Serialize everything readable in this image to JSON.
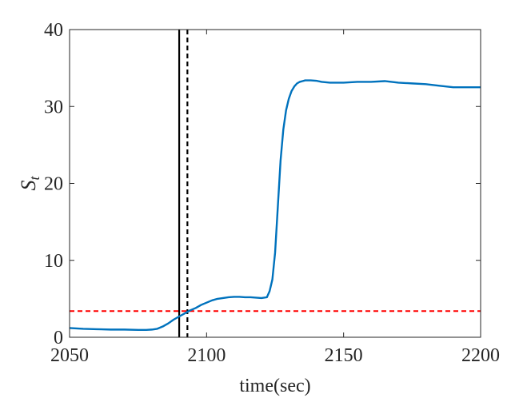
{
  "chart_data": {
    "type": "line",
    "title": "",
    "xlabel": "time(sec)",
    "ylabel": {
      "main": "S",
      "subscript": "t"
    },
    "xlim": [
      2050,
      2200
    ],
    "ylim": [
      0,
      40
    ],
    "xticks": [
      2050,
      2100,
      2150,
      2200
    ],
    "yticks": [
      0,
      10,
      20,
      30,
      40
    ],
    "xtick_labels": [
      "2050",
      "2100",
      "2150",
      "2200"
    ],
    "ytick_labels": [
      "0",
      "10",
      "20",
      "30",
      "40"
    ],
    "grid": false,
    "box": true,
    "series": [
      {
        "color": "#0072BD",
        "style": "solid",
        "x": [
          2050,
          2055,
          2060,
          2065,
          2070,
          2075,
          2078,
          2080,
          2082,
          2084,
          2086,
          2088,
          2090,
          2092,
          2094,
          2096,
          2098,
          2100,
          2102,
          2104,
          2106,
          2108,
          2110,
          2112,
          2114,
          2116,
          2118,
          2120,
          2122,
          2123,
          2124,
          2125,
          2126,
          2127,
          2128,
          2129,
          2130,
          2131,
          2132,
          2133,
          2134,
          2135,
          2136,
          2138,
          2140,
          2142,
          2145,
          2150,
          2155,
          2160,
          2165,
          2170,
          2175,
          2180,
          2185,
          2190,
          2195,
          2200
        ],
        "y": [
          1.2,
          1.1,
          1.05,
          1.0,
          1.0,
          0.95,
          0.95,
          1.0,
          1.1,
          1.4,
          1.8,
          2.3,
          2.7,
          3.1,
          3.5,
          3.8,
          4.2,
          4.5,
          4.8,
          5.0,
          5.1,
          5.2,
          5.25,
          5.25,
          5.2,
          5.2,
          5.15,
          5.1,
          5.2,
          6.0,
          7.5,
          11.0,
          17.0,
          23.0,
          27.0,
          29.5,
          31.0,
          32.0,
          32.6,
          33.0,
          33.2,
          33.3,
          33.4,
          33.4,
          33.35,
          33.2,
          33.1,
          33.1,
          33.2,
          33.2,
          33.3,
          33.1,
          33.0,
          32.9,
          32.7,
          32.5,
          32.5,
          32.5
        ]
      }
    ],
    "annotations": [
      {
        "type": "vline",
        "x": 2090,
        "color": "#000000",
        "style": "solid"
      },
      {
        "type": "vline",
        "x": 2093,
        "color": "#000000",
        "style": "dashed"
      },
      {
        "type": "hline",
        "y": 3.4,
        "color": "#FF0000",
        "style": "dashed"
      }
    ]
  }
}
